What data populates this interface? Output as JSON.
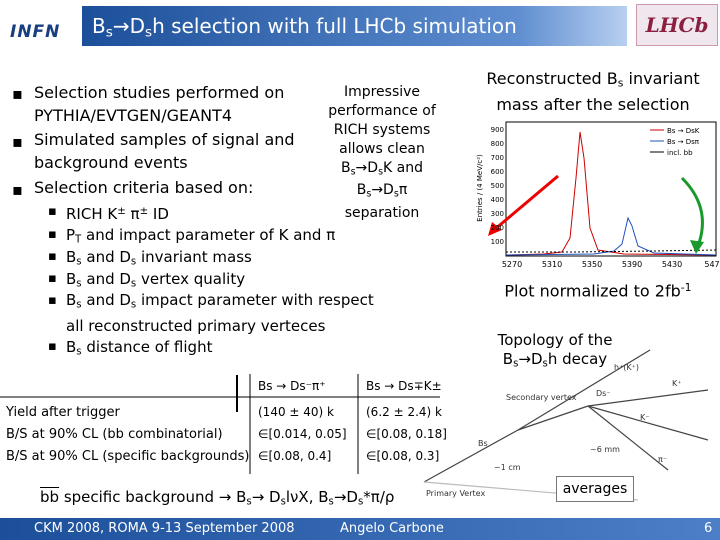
{
  "header": {
    "logo_left": "INFN",
    "title": [
      "B",
      "s",
      "→D",
      "s",
      "h selection with full LHCb simulation"
    ],
    "logo_right": "LHCb"
  },
  "bullets": [
    "Selection studies performed on PYTHIA/EVTGEN/GEANT4",
    "Simulated samples of signal and background events",
    "Selection criteria based on:"
  ],
  "sub_bullets": [
    [
      "RICH K",
      "±",
      " π",
      "±",
      " ID"
    ],
    [
      "P",
      "T",
      " and impact parameter of K and π"
    ],
    [
      "B",
      "s",
      " and D",
      "s",
      " invariant mass"
    ],
    [
      "B",
      "s",
      " and D",
      "s",
      " vertex quality"
    ],
    [
      "B",
      "s",
      " and D",
      "s",
      " impact parameter with respect all reconstructed primary verteces"
    ],
    [
      "B",
      "s",
      " distance of flight"
    ]
  ],
  "callout": {
    "text": "Impressive performance of RICH systems allows clean",
    "line1": [
      "B",
      "s",
      "→D",
      "s",
      "K and"
    ],
    "line2": [
      "B",
      "s",
      "→D",
      "s",
      "π"
    ],
    "end": "separation"
  },
  "plot_caption": [
    "Reconstructed B",
    "s",
    " invariant mass after the selection"
  ],
  "plot": {
    "y_label": "Entries / (4 MeV/c²)",
    "yticks": [
      "900",
      "800",
      "700",
      "600",
      "500",
      "400",
      "300",
      "200",
      "100"
    ],
    "xticks": [
      "5270",
      "5310",
      "5350",
      "5390",
      "5430",
      "547"
    ],
    "legend": [
      "Bs → DsK",
      "Bs → Dsπ",
      "incl. bb"
    ]
  },
  "normalization": [
    "Plot normalized to 2fb",
    "-1"
  ],
  "topology": {
    "caption": [
      "Topology of the",
      "B",
      "s",
      "→D",
      "s",
      "h decay"
    ],
    "labels": [
      "Secondary vertex",
      "Primary Vertex",
      "Bs",
      "Ds⁻",
      "K⁺",
      "K⁻",
      "π⁻",
      "h⁺(K⁺)",
      "~1 cm",
      "~6 mm"
    ]
  },
  "averages": "averages",
  "table": {
    "columns": [
      "Bs → Ds⁻π⁺",
      "Bs → Ds∓K±"
    ],
    "rows": [
      [
        "Yield after trigger",
        "(140 ± 40) k",
        "(6.2 ± 2.4) k"
      ],
      [
        "B/S at 90% CL (bb combinatorial)",
        "∈[0.014, 0.05]",
        "∈[0.08, 0.18]"
      ],
      [
        "B/S at 90% CL (specific backgrounds)",
        "∈[0.08, 0.4]",
        "∈[0.08, 0.3]"
      ]
    ]
  },
  "background_note": [
    "bb",
    " specific background → B",
    "s",
    "→ D",
    "s",
    "lνX, B",
    "s",
    "→D",
    "s",
    "*π/ρ"
  ],
  "footer": {
    "conference": "CKM 2008, ROMA 9-13 September 2008",
    "author": "Angelo Carbone",
    "page": "6"
  }
}
